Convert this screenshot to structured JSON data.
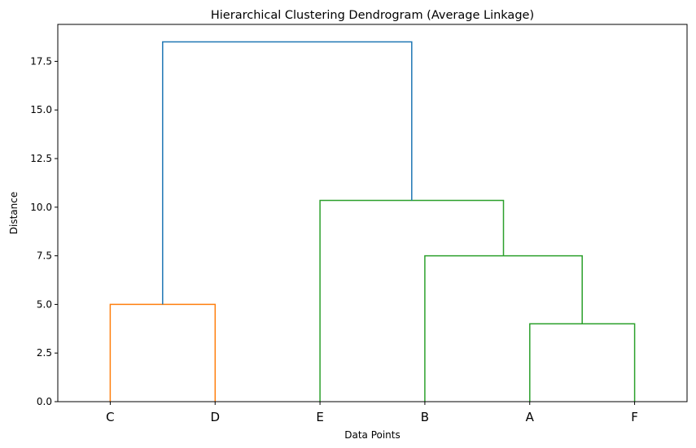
{
  "chart_data": {
    "type": "dendrogram",
    "title": "Hierarchical Clustering Dendrogram (Average Linkage)",
    "xlabel": "Data Points",
    "ylabel": "Distance",
    "ylim": [
      0,
      19.4
    ],
    "yticks": [
      0.0,
      2.5,
      5.0,
      7.5,
      10.0,
      12.5,
      15.0,
      17.5
    ],
    "ytick_labels": [
      "0.0",
      "2.5",
      "5.0",
      "7.5",
      "10.0",
      "12.5",
      "15.0",
      "17.5"
    ],
    "leaves": [
      "C",
      "D",
      "E",
      "B",
      "A",
      "F"
    ],
    "grid": false,
    "colors": {
      "cluster_1": "#ff7f0e",
      "cluster_2": "#2ca02c",
      "above_threshold": "#1f77b4"
    },
    "merges": [
      {
        "left": "C",
        "right": "D",
        "height": 5.0,
        "color": "#ff7f0e"
      },
      {
        "left": "A",
        "right": "F",
        "height": 4.0,
        "color": "#2ca02c"
      },
      {
        "left": "B",
        "right": "(A,F)",
        "height": 7.5,
        "color": "#2ca02c"
      },
      {
        "left": "E",
        "right": "(B,(A,F))",
        "height": 10.35,
        "color": "#2ca02c"
      },
      {
        "left": "(C,D)",
        "right": "(E,(B,(A,F)))",
        "height": 18.5,
        "color": "#1f77b4"
      }
    ]
  }
}
